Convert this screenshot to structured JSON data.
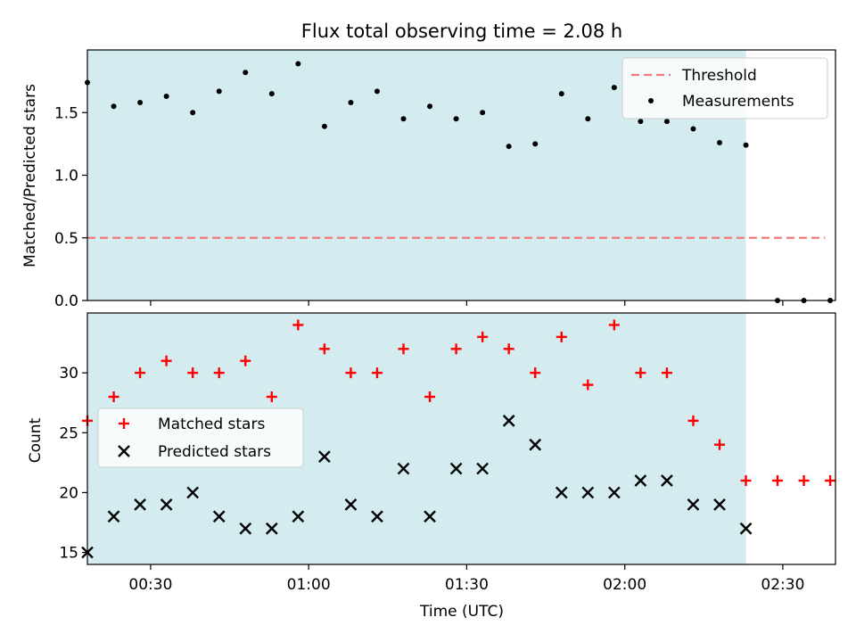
{
  "title": "Flux total observing time = 2.08 h",
  "colors": {
    "shade": "#d4ebf0",
    "threshold": "#f07a7a",
    "measurement": "#000000",
    "matched": "#ff0000",
    "predicted": "#000000"
  },
  "chart_data": [
    {
      "type": "scatter",
      "ylabel": "Matched/Predicted stars",
      "ylim": [
        0,
        2.0
      ],
      "yticks": [
        0.0,
        0.5,
        1.0,
        1.5
      ],
      "ytick_labels": [
        "0.0",
        "0.5",
        "1.0",
        "1.5"
      ],
      "xlim": [
        "00:18",
        "02:40"
      ],
      "shaded_interval": [
        "00:18",
        "02:23"
      ],
      "legend": {
        "placement": "top-right",
        "entries": [
          "Threshold",
          "Measurements"
        ]
      },
      "threshold": {
        "name": "Threshold",
        "y": 0.5,
        "x": [
          "00:18",
          "02:38"
        ],
        "style": "dashed"
      },
      "series": [
        {
          "name": "Measurements",
          "x": [
            "00:18",
            "00:23",
            "00:28",
            "00:33",
            "00:38",
            "00:43",
            "00:48",
            "00:53",
            "00:58",
            "01:03",
            "01:08",
            "01:13",
            "01:18",
            "01:23",
            "01:28",
            "01:33",
            "01:38",
            "01:43",
            "01:48",
            "01:53",
            "01:58",
            "02:03",
            "02:08",
            "02:13",
            "02:18",
            "02:23",
            "02:29",
            "02:34",
            "02:39"
          ],
          "y": [
            1.74,
            1.55,
            1.58,
            1.63,
            1.5,
            1.67,
            1.82,
            1.65,
            1.89,
            1.39,
            1.58,
            1.67,
            1.45,
            1.55,
            1.45,
            1.5,
            1.23,
            1.25,
            1.65,
            1.45,
            1.7,
            1.43,
            1.43,
            1.37,
            1.26,
            1.24,
            0.0,
            0.0,
            0.0
          ]
        }
      ]
    },
    {
      "type": "scatter",
      "ylabel": "Count",
      "xlabel": "Time (UTC)",
      "ylim": [
        14,
        35
      ],
      "yticks": [
        15,
        20,
        25,
        30
      ],
      "ytick_labels": [
        "15",
        "20",
        "25",
        "30"
      ],
      "xlim": [
        "00:18",
        "02:40"
      ],
      "xticks": [
        "00:30",
        "01:00",
        "01:30",
        "02:00",
        "02:30"
      ],
      "xtick_labels": [
        "00:30",
        "01:00",
        "01:30",
        "02:00",
        "02:30"
      ],
      "shaded_interval": [
        "00:18",
        "02:23"
      ],
      "legend": {
        "placement": "center-left",
        "entries": [
          "Matched stars",
          "Predicted stars"
        ]
      },
      "series": [
        {
          "name": "Matched stars",
          "marker": "plus",
          "x": [
            "00:18",
            "00:23",
            "00:28",
            "00:33",
            "00:38",
            "00:43",
            "00:48",
            "00:53",
            "00:58",
            "01:03",
            "01:08",
            "01:13",
            "01:18",
            "01:23",
            "01:28",
            "01:33",
            "01:38",
            "01:43",
            "01:48",
            "01:53",
            "01:58",
            "02:03",
            "02:08",
            "02:13",
            "02:18",
            "02:23",
            "02:29",
            "02:34",
            "02:39"
          ],
          "y": [
            26,
            28,
            30,
            31,
            30,
            30,
            31,
            28,
            34,
            32,
            30,
            30,
            32,
            28,
            32,
            33,
            32,
            30,
            33,
            29,
            34,
            30,
            30,
            26,
            24,
            21,
            21,
            21,
            21
          ]
        },
        {
          "name": "Predicted stars",
          "marker": "x",
          "x": [
            "00:18",
            "00:23",
            "00:28",
            "00:33",
            "00:38",
            "00:43",
            "00:48",
            "00:53",
            "00:58",
            "01:03",
            "01:08",
            "01:13",
            "01:18",
            "01:23",
            "01:28",
            "01:33",
            "01:38",
            "01:43",
            "01:48",
            "01:53",
            "01:58",
            "02:03",
            "02:08",
            "02:13",
            "02:18",
            "02:23"
          ],
          "y": [
            15,
            18,
            19,
            19,
            20,
            18,
            17,
            17,
            18,
            23,
            19,
            18,
            22,
            18,
            22,
            22,
            26,
            24,
            20,
            20,
            20,
            21,
            21,
            19,
            19,
            17
          ]
        }
      ]
    }
  ]
}
